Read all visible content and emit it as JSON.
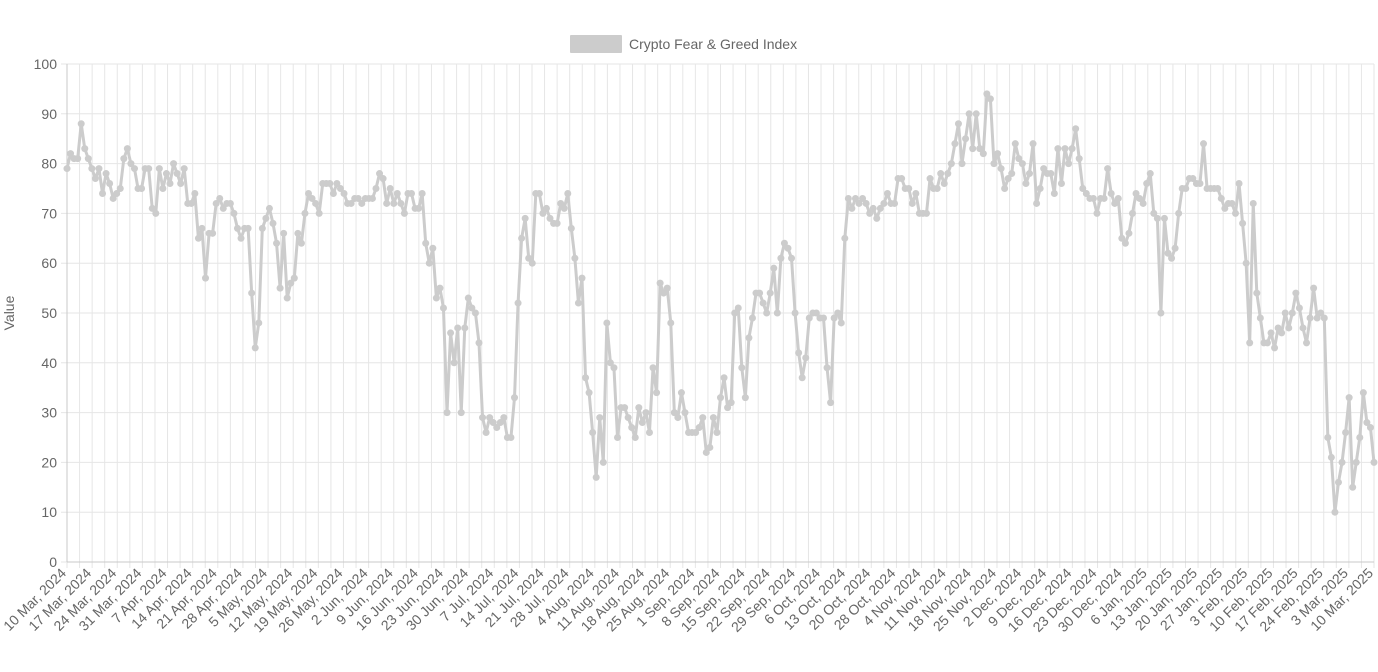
{
  "legend": {
    "label": "Crypto Fear & Greed Index",
    "swatch_color": "#cccccc"
  },
  "chart_data": {
    "type": "line",
    "title": "",
    "xlabel": "",
    "ylabel": "Value",
    "ylim": [
      0,
      100
    ],
    "y_ticks": [
      0,
      10,
      20,
      30,
      40,
      50,
      60,
      70,
      80,
      90,
      100
    ],
    "grid": true,
    "legend_position": "top-center",
    "line_color": "#cccccc",
    "x_tick_labels": [
      "10 Mar, 2024",
      "17 Mar, 2024",
      "24 Mar, 2024",
      "31 Mar, 2024",
      "7 Apr, 2024",
      "14 Apr, 2024",
      "21 Apr, 2024",
      "28 Apr, 2024",
      "5 May, 2024",
      "12 May, 2024",
      "19 May, 2024",
      "26 May, 2024",
      "2 Jun, 2024",
      "9 Jun, 2024",
      "16 Jun, 2024",
      "23 Jun, 2024",
      "30 Jun, 2024",
      "7 Jul, 2024",
      "14 Jul, 2024",
      "21 Jul, 2024",
      "28 Jul, 2024",
      "4 Aug, 2024",
      "11 Aug, 2024",
      "18 Aug, 2024",
      "25 Aug, 2024",
      "1 Sep, 2024",
      "8 Sep, 2024",
      "15 Sep, 2024",
      "22 Sep, 2024",
      "29 Sep, 2024",
      "6 Oct, 2024",
      "13 Oct, 2024",
      "20 Oct, 2024",
      "28 Oct, 2024",
      "4 Nov, 2024",
      "11 Nov, 2024",
      "18 Nov, 2024",
      "25 Nov, 2024",
      "2 Dec, 2024",
      "9 Dec, 2024",
      "16 Dec, 2024",
      "23 Dec, 2024",
      "30 Dec, 2024",
      "6 Jan, 2025",
      "13 Jan, 2025",
      "20 Jan, 2025",
      "27 Jan, 2025",
      "3 Feb, 2025",
      "10 Feb, 2025",
      "17 Feb, 2025",
      "24 Feb, 2025",
      "3 Mar, 2025",
      "10 Mar, 2025"
    ],
    "x_start": "2024-03-10",
    "x_end": "2025-03-10",
    "series": [
      {
        "name": "Crypto Fear & Greed Index",
        "values": [
          79,
          82,
          81,
          81,
          88,
          83,
          81,
          79,
          77,
          79,
          74,
          78,
          76,
          73,
          74,
          75,
          81,
          83,
          80,
          79,
          75,
          75,
          79,
          79,
          71,
          70,
          79,
          75,
          78,
          76,
          80,
          78,
          76,
          79,
          72,
          72,
          74,
          65,
          67,
          57,
          66,
          66,
          72,
          73,
          71,
          72,
          72,
          70,
          67,
          65,
          67,
          67,
          54,
          43,
          48,
          67,
          69,
          71,
          68,
          64,
          55,
          66,
          53,
          56,
          57,
          66,
          64,
          70,
          74,
          73,
          72,
          70,
          76,
          76,
          76,
          74,
          76,
          75,
          74,
          72,
          72,
          73,
          73,
          72,
          73,
          73,
          73,
          75,
          78,
          77,
          72,
          75,
          72,
          74,
          72,
          70,
          74,
          74,
          71,
          71,
          74,
          64,
          60,
          63,
          53,
          55,
          51,
          30,
          46,
          40,
          47,
          30,
          47,
          53,
          51,
          50,
          44,
          29,
          26,
          29,
          28,
          27,
          28,
          29,
          25,
          25,
          33,
          52,
          65,
          69,
          61,
          60,
          74,
          74,
          70,
          71,
          69,
          68,
          68,
          72,
          71,
          74,
          67,
          61,
          52,
          57,
          37,
          34,
          26,
          17,
          29,
          20,
          48,
          40,
          39,
          25,
          31,
          31,
          29,
          27,
          25,
          31,
          28,
          30,
          26,
          39,
          34,
          56,
          54,
          55,
          48,
          30,
          29,
          34,
          30,
          26,
          26,
          26,
          27,
          29,
          22,
          23,
          29,
          26,
          33,
          37,
          31,
          32,
          50,
          51,
          39,
          33,
          45,
          49,
          54,
          54,
          52,
          50,
          54,
          59,
          50,
          61,
          64,
          63,
          61,
          50,
          42,
          37,
          41,
          49,
          50,
          50,
          49,
          49,
          39,
          32,
          49,
          50,
          48,
          65,
          73,
          71,
          73,
          72,
          73,
          72,
          70,
          71,
          69,
          71,
          72,
          74,
          72,
          72,
          77,
          77,
          75,
          75,
          72,
          74,
          70,
          70,
          70,
          77,
          75,
          75,
          78,
          76,
          78,
          80,
          84,
          88,
          80,
          85,
          90,
          83,
          90,
          83,
          82,
          94,
          93,
          80,
          82,
          79,
          75,
          77,
          78,
          84,
          81,
          80,
          76,
          78,
          84,
          72,
          75,
          79,
          78,
          78,
          74,
          83,
          76,
          83,
          80,
          83,
          87,
          81,
          75,
          74,
          73,
          73,
          70,
          73,
          73,
          79,
          74,
          72,
          73,
          65,
          64,
          66,
          70,
          74,
          73,
          72,
          76,
          78,
          70,
          69,
          50,
          69,
          62,
          61,
          63,
          70,
          75,
          75,
          77,
          77,
          76,
          76,
          84,
          75,
          75,
          75,
          75,
          73,
          71,
          72,
          72,
          70,
          76,
          68,
          60,
          44,
          72,
          54,
          49,
          44,
          44,
          46,
          43,
          47,
          46,
          50,
          47,
          50,
          54,
          51,
          47,
          44,
          49,
          55,
          49,
          50,
          49,
          25,
          21,
          10,
          16,
          20,
          26,
          33,
          15,
          20,
          25,
          34,
          28,
          27,
          20
        ]
      }
    ]
  }
}
